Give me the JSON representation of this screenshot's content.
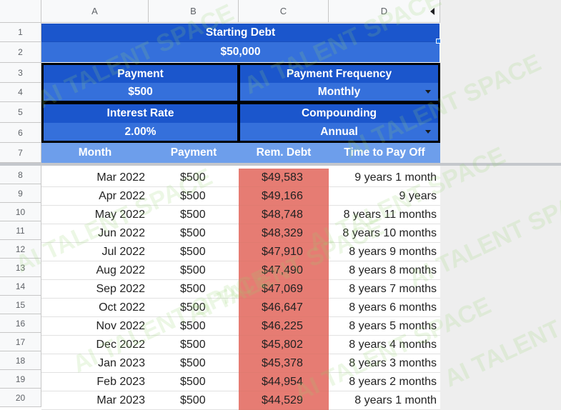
{
  "columns": [
    "A",
    "B",
    "C",
    "D"
  ],
  "rows_header": [
    "1",
    "2",
    "3",
    "4",
    "5",
    "6",
    "7",
    "8",
    "9",
    "10",
    "11",
    "12",
    "13",
    "14",
    "15",
    "16",
    "17",
    "18",
    "19",
    "20"
  ],
  "summary": {
    "starting_debt_label": "Starting Debt",
    "starting_debt_value": "$50,000",
    "payment_label": "Payment",
    "payment_value": "$500",
    "frequency_label": "Payment Frequency",
    "frequency_value": "Monthly",
    "interest_label": "Interest Rate",
    "interest_value": "2.00%",
    "compounding_label": "Compounding",
    "compounding_value": "Annual"
  },
  "table": {
    "headers": [
      "Month",
      "Payment",
      "Rem. Debt",
      "Time to Pay Off"
    ],
    "rows": [
      [
        "Mar 2022",
        "$500",
        "$49,583",
        "9 years 1 month"
      ],
      [
        "Apr 2022",
        "$500",
        "$49,166",
        "9 years"
      ],
      [
        "May 2022",
        "$500",
        "$48,748",
        "8 years 11 months"
      ],
      [
        "Jun 2022",
        "$500",
        "$48,329",
        "8 years 10 months"
      ],
      [
        "Jul 2022",
        "$500",
        "$47,910",
        "8 years 9 months"
      ],
      [
        "Aug 2022",
        "$500",
        "$47,490",
        "8 years 8 months"
      ],
      [
        "Sep 2022",
        "$500",
        "$47,069",
        "8 years 7 months"
      ],
      [
        "Oct 2022",
        "$500",
        "$46,647",
        "8 years 6 months"
      ],
      [
        "Nov 2022",
        "$500",
        "$46,225",
        "8 years 5 months"
      ],
      [
        "Dec 2022",
        "$500",
        "$45,802",
        "8 years 4 months"
      ],
      [
        "Jan 2023",
        "$500",
        "$45,378",
        "8 years 3 months"
      ],
      [
        "Feb 2023",
        "$500",
        "$44,954",
        "8 years 2 months"
      ],
      [
        "Mar 2023",
        "$500",
        "$44,529",
        "8 years 1 month"
      ]
    ]
  },
  "watermark_text": "AI TALENT SPACE",
  "colors": {
    "header_blue": "#2b63d1",
    "table_header_blue": "#6d9eeb",
    "debt_red": "#e67c73"
  }
}
